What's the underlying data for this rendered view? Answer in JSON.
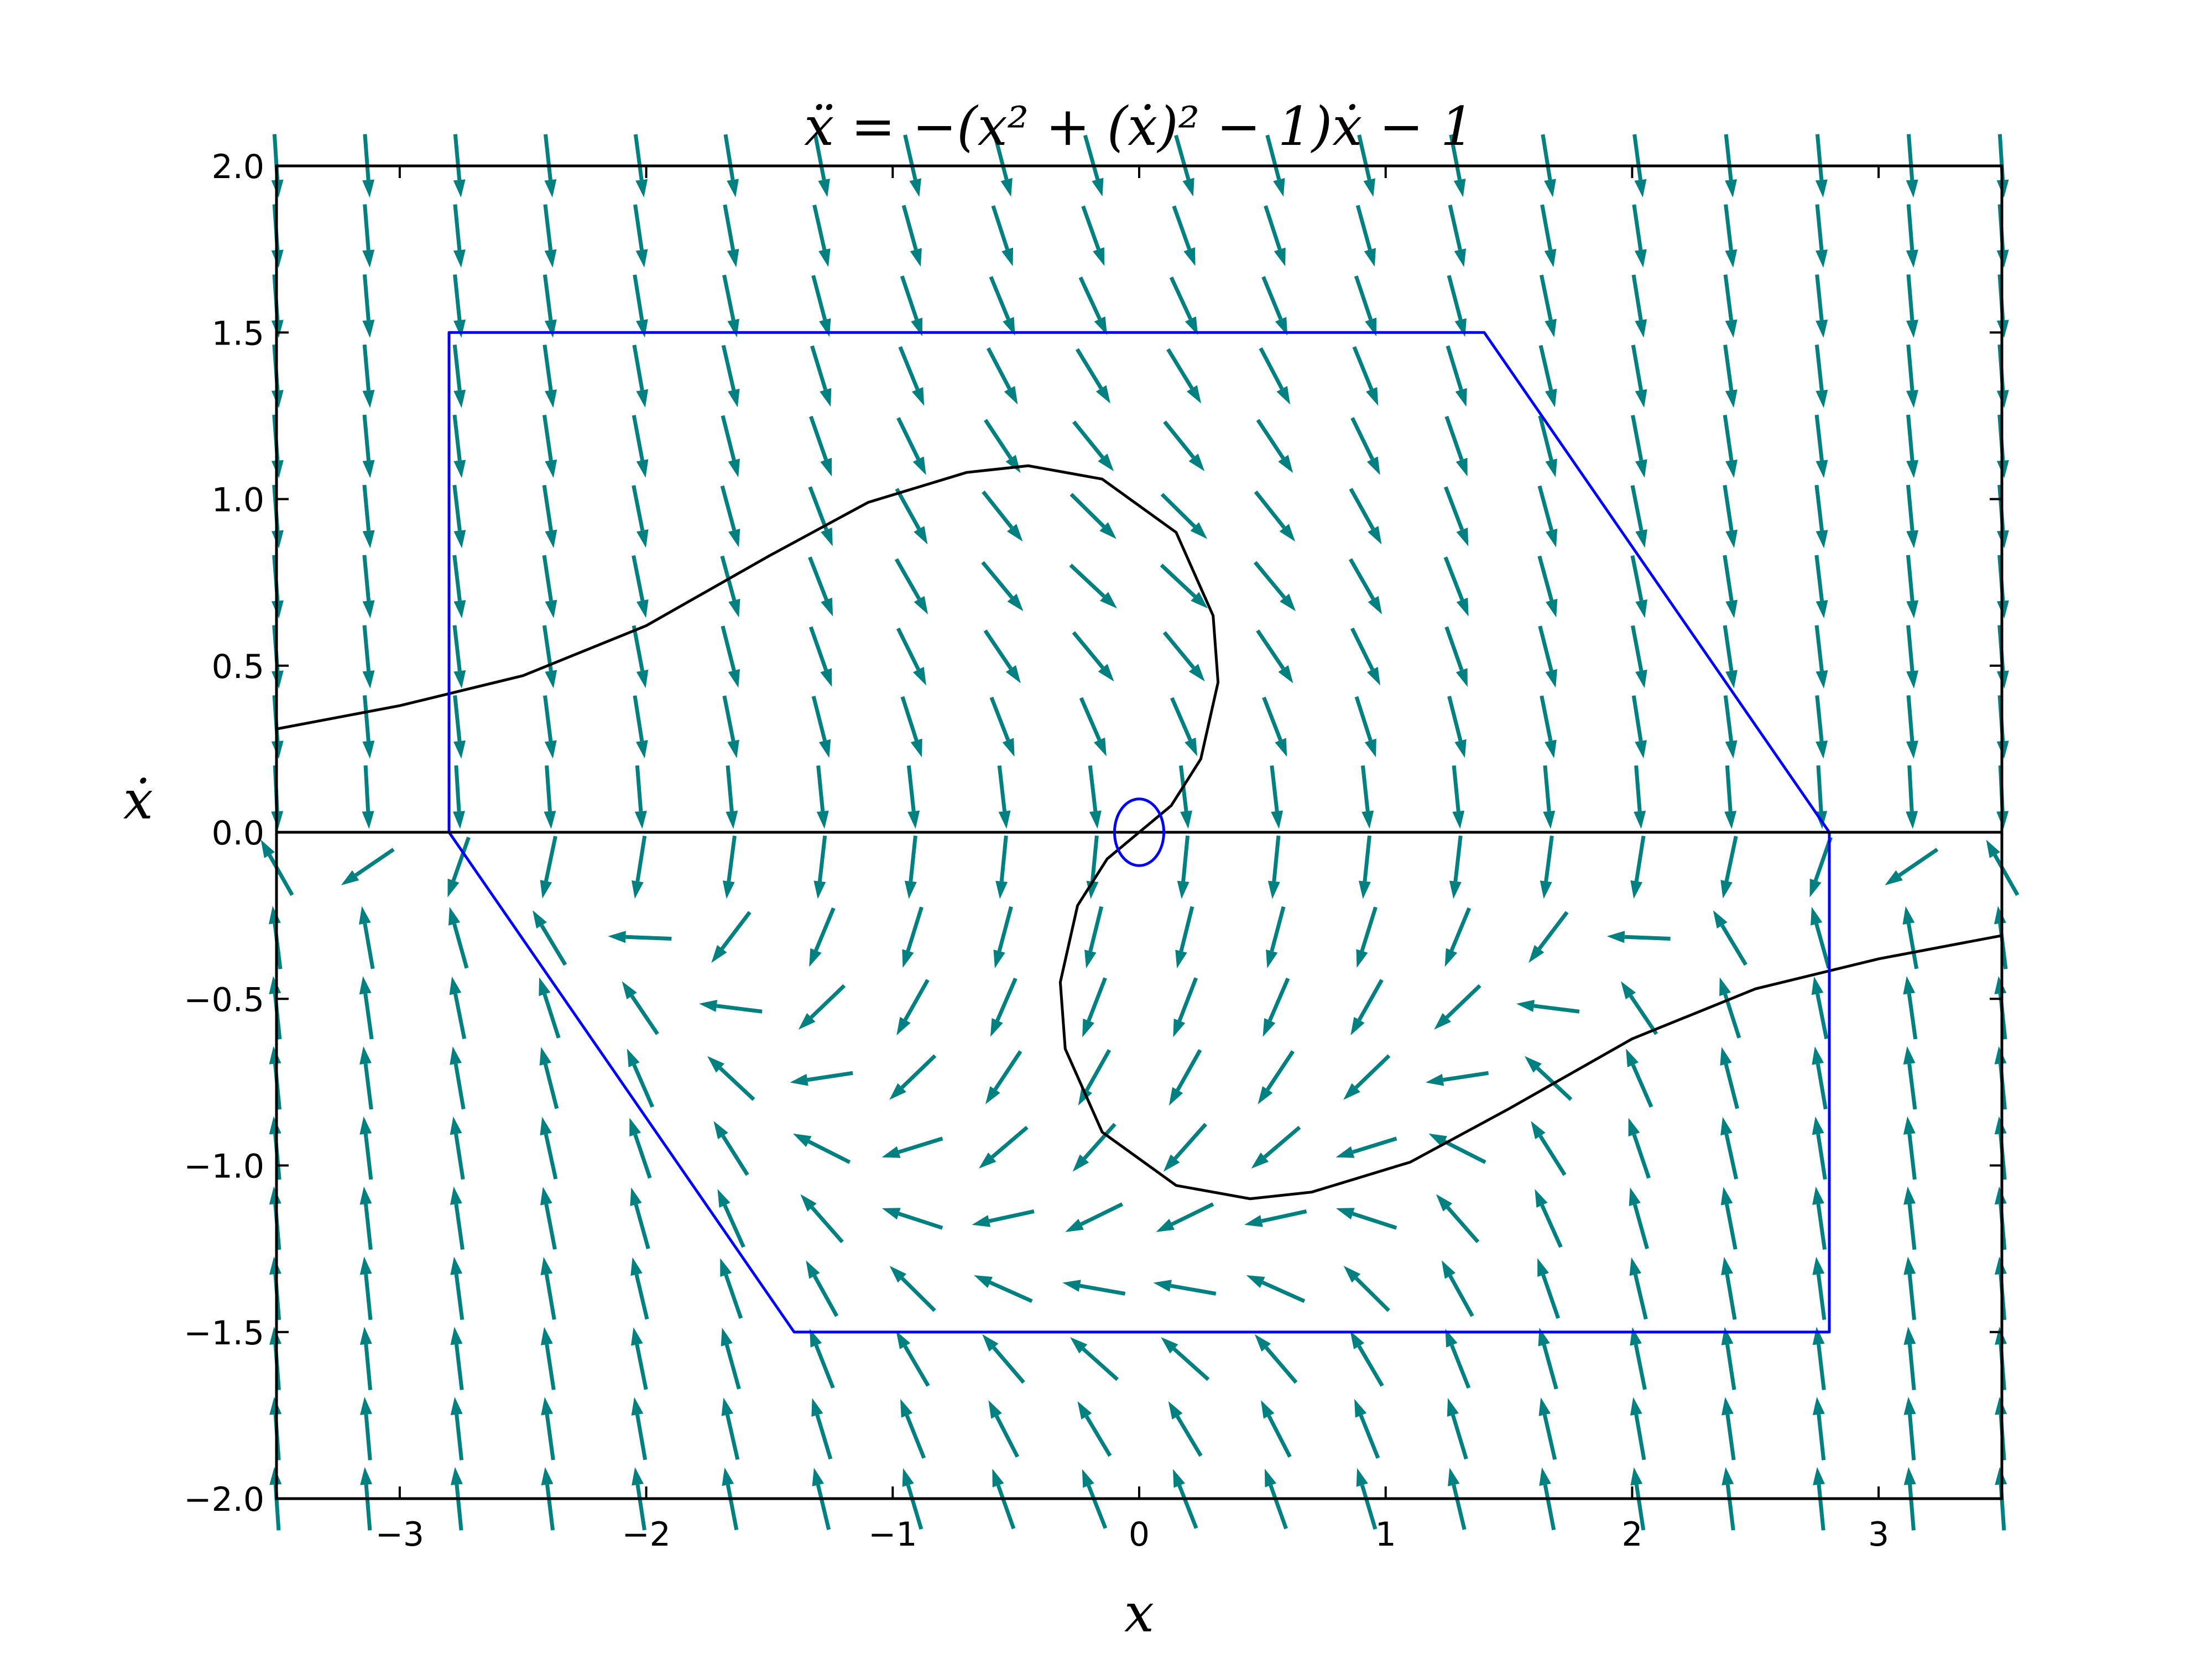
{
  "chart_data": {
    "type": "quiver",
    "title": "ẍ = −(x² + (ẋ)² − 1)ẋ − 1",
    "xlabel": "x",
    "ylabel": "ẋ",
    "xlim": [
      -3.5,
      3.5
    ],
    "ylim": [
      -2.0,
      2.0
    ],
    "xticks": [
      -3,
      -2,
      -1,
      0,
      1,
      2,
      3
    ],
    "xtick_labels": [
      "−3",
      "−2",
      "−1",
      "0",
      "1",
      "2",
      "3"
    ],
    "yticks": [
      -2.0,
      -1.5,
      -1.0,
      -0.5,
      0.0,
      0.5,
      1.0,
      1.5,
      2.0
    ],
    "ytick_labels": [
      "−2.0",
      "−1.5",
      "−1.0",
      "−0.5",
      "0.0",
      "0.5",
      "1.0",
      "1.5",
      "2.0"
    ],
    "grid": false,
    "vector_field": {
      "equation": "ẍ = −(x² + (ẋ)² − 1)ẋ − 1",
      "x_range": [
        -3.5,
        3.5
      ],
      "y_range": [
        -2.0,
        2.0
      ],
      "nx": 20,
      "ny": 20,
      "color": "#008080"
    },
    "series": [
      {
        "name": "trajectory",
        "color": "#000000",
        "points": [
          [
            -3.5,
            0.31
          ],
          [
            -3.0,
            0.38
          ],
          [
            -2.5,
            0.47
          ],
          [
            -2.0,
            0.62
          ],
          [
            -1.5,
            0.83
          ],
          [
            -1.1,
            0.99
          ],
          [
            -0.7,
            1.08
          ],
          [
            -0.45,
            1.1
          ],
          [
            -0.15,
            1.06
          ],
          [
            0.15,
            0.9
          ],
          [
            0.3,
            0.65
          ],
          [
            0.32,
            0.45
          ],
          [
            0.25,
            0.22
          ],
          [
            0.13,
            0.08
          ],
          [
            0.0,
            0.0
          ],
          [
            -0.13,
            -0.08
          ],
          [
            -0.25,
            -0.22
          ],
          [
            -0.32,
            -0.45
          ],
          [
            -0.3,
            -0.65
          ],
          [
            -0.15,
            -0.9
          ],
          [
            0.15,
            -1.06
          ],
          [
            0.45,
            -1.1
          ],
          [
            0.7,
            -1.08
          ],
          [
            1.1,
            -0.99
          ],
          [
            1.5,
            -0.83
          ],
          [
            2.0,
            -0.62
          ],
          [
            2.5,
            -0.47
          ],
          [
            3.0,
            -0.38
          ],
          [
            3.5,
            -0.31
          ]
        ]
      },
      {
        "name": "trapping-region",
        "color": "#0000FF",
        "points": [
          [
            -2.8,
            0.0
          ],
          [
            -2.8,
            1.5
          ],
          [
            1.4,
            1.5
          ],
          [
            2.8,
            0.0
          ],
          [
            2.8,
            -1.5
          ],
          [
            -1.4,
            -1.5
          ],
          [
            -2.8,
            0.0
          ]
        ]
      },
      {
        "name": "x-axis-line",
        "color": "#000000",
        "points": [
          [
            -3.5,
            0.0
          ],
          [
            3.5,
            0.0
          ]
        ]
      },
      {
        "name": "small-ellipse",
        "color": "#0000FF",
        "center": [
          0.0,
          0.0
        ],
        "radii": [
          0.1,
          0.1
        ]
      }
    ]
  }
}
